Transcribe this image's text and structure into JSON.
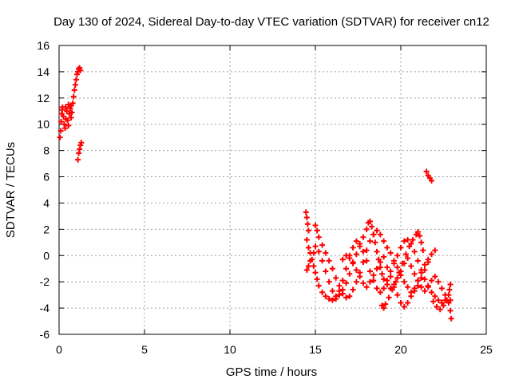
{
  "chart_data": {
    "type": "scatter",
    "title": "Day 130 of 2024, Sidereal Day-to-day VTEC variation (SDTVAR) for receiver cn12",
    "xlabel": "GPS time / hours",
    "ylabel": "SDTVAR / TECUs",
    "xlim": [
      0,
      25
    ],
    "ylim": [
      -6,
      16
    ],
    "xticks": [
      0,
      5,
      10,
      15,
      20,
      25
    ],
    "yticks": [
      -6,
      -4,
      -2,
      0,
      2,
      4,
      6,
      8,
      10,
      12,
      14,
      16
    ],
    "grid": true,
    "marker": "+",
    "series": [
      {
        "color": "#ff0000",
        "points": [
          [
            0.05,
            9.0
          ],
          [
            0.1,
            9.5
          ],
          [
            0.12,
            10.2
          ],
          [
            0.15,
            10.8
          ],
          [
            0.2,
            11.3
          ],
          [
            0.25,
            10.6
          ],
          [
            0.3,
            10.0
          ],
          [
            0.35,
            9.7
          ],
          [
            0.4,
            10.4
          ],
          [
            0.45,
            11.0
          ],
          [
            0.5,
            10.3
          ],
          [
            0.55,
            9.9
          ],
          [
            0.6,
            10.8
          ],
          [
            0.65,
            11.2
          ],
          [
            0.7,
            11.4
          ],
          [
            0.75,
            10.9
          ],
          [
            0.8,
            11.6
          ],
          [
            0.85,
            12.1
          ],
          [
            0.9,
            12.6
          ],
          [
            0.95,
            13.0
          ],
          [
            1.0,
            13.4
          ],
          [
            1.05,
            13.8
          ],
          [
            1.1,
            14.0
          ],
          [
            1.15,
            14.2
          ],
          [
            1.2,
            14.3
          ],
          [
            1.25,
            14.1
          ],
          [
            0.18,
            11.1
          ],
          [
            0.38,
            11.3
          ],
          [
            0.55,
            11.5
          ],
          [
            0.7,
            10.5
          ],
          [
            1.1,
            7.3
          ],
          [
            1.15,
            7.8
          ],
          [
            1.2,
            8.1
          ],
          [
            1.25,
            8.4
          ],
          [
            1.3,
            8.6
          ],
          [
            21.5,
            6.4
          ],
          [
            21.6,
            6.1
          ],
          [
            21.7,
            5.9
          ],
          [
            21.8,
            5.7
          ],
          [
            14.45,
            3.3
          ],
          [
            14.5,
            2.9
          ],
          [
            14.55,
            2.4
          ],
          [
            14.6,
            1.9
          ],
          [
            14.5,
            1.2
          ],
          [
            14.6,
            0.6
          ],
          [
            14.7,
            0.2
          ],
          [
            14.8,
            -0.3
          ],
          [
            14.9,
            -0.8
          ],
          [
            15.0,
            -1.3
          ],
          [
            15.1,
            -1.8
          ],
          [
            15.2,
            -2.3
          ],
          [
            15.4,
            -2.8
          ],
          [
            15.6,
            -3.1
          ],
          [
            15.8,
            -3.3
          ],
          [
            16.0,
            -3.4
          ],
          [
            16.2,
            -3.3
          ],
          [
            16.4,
            -3.0
          ],
          [
            16.6,
            -2.6
          ],
          [
            16.8,
            -2.1
          ],
          [
            17.0,
            -1.4
          ],
          [
            17.2,
            -0.6
          ],
          [
            17.4,
            0.1
          ],
          [
            17.6,
            0.7
          ],
          [
            17.8,
            1.4
          ],
          [
            18.0,
            2.0
          ],
          [
            18.1,
            2.5
          ],
          [
            18.2,
            2.6
          ],
          [
            18.3,
            2.2
          ],
          [
            18.4,
            1.6
          ],
          [
            18.5,
            1.0
          ],
          [
            18.6,
            0.3
          ],
          [
            18.7,
            -0.3
          ],
          [
            18.8,
            -0.9
          ],
          [
            18.9,
            -1.4
          ],
          [
            19.0,
            -1.8
          ],
          [
            19.2,
            -2.2
          ],
          [
            19.4,
            -2.5
          ],
          [
            19.6,
            -2.2
          ],
          [
            19.8,
            -1.7
          ],
          [
            20.0,
            -1.2
          ],
          [
            20.2,
            -0.6
          ],
          [
            20.4,
            -0.2
          ],
          [
            20.6,
            -0.8
          ],
          [
            20.8,
            -1.4
          ],
          [
            21.0,
            -1.9
          ],
          [
            21.2,
            -2.4
          ],
          [
            21.4,
            -2.7
          ],
          [
            21.6,
            -2.3
          ],
          [
            21.8,
            -1.9
          ],
          [
            22.0,
            -1.6
          ],
          [
            22.2,
            -2.0
          ],
          [
            22.4,
            -2.5
          ],
          [
            22.6,
            -3.0
          ],
          [
            22.8,
            -3.6
          ],
          [
            22.9,
            -4.2
          ],
          [
            22.95,
            -4.8
          ],
          [
            15.0,
            2.3
          ],
          [
            15.1,
            1.9
          ],
          [
            15.2,
            1.4
          ],
          [
            15.4,
            0.8
          ],
          [
            15.6,
            0.2
          ],
          [
            15.8,
            -0.4
          ],
          [
            16.0,
            -1.0
          ],
          [
            16.2,
            -1.7
          ],
          [
            16.4,
            -2.3
          ],
          [
            16.6,
            -2.9
          ],
          [
            16.8,
            -3.2
          ],
          [
            17.0,
            -3.1
          ],
          [
            17.2,
            -2.6
          ],
          [
            17.4,
            -2.0
          ],
          [
            17.6,
            -1.3
          ],
          [
            17.8,
            -0.5
          ],
          [
            18.0,
            0.4
          ],
          [
            18.2,
            1.1
          ],
          [
            18.4,
            1.6
          ],
          [
            18.6,
            1.9
          ],
          [
            18.8,
            1.6
          ],
          [
            19.0,
            1.1
          ],
          [
            19.2,
            0.6
          ],
          [
            19.4,
            0.2
          ],
          [
            19.6,
            -0.4
          ],
          [
            19.8,
            -0.9
          ],
          [
            20.0,
            -1.5
          ],
          [
            20.2,
            -2.0
          ],
          [
            20.4,
            -2.4
          ],
          [
            20.6,
            -2.8
          ],
          [
            20.8,
            -2.7
          ],
          [
            21.0,
            -2.3
          ],
          [
            21.2,
            -1.7
          ],
          [
            21.4,
            -1.1
          ],
          [
            21.6,
            -0.5
          ],
          [
            21.8,
            0.1
          ],
          [
            22.0,
            0.4
          ],
          [
            16.6,
            -0.3
          ],
          [
            16.8,
            0.0
          ],
          [
            17.0,
            0.0
          ],
          [
            17.2,
            -0.5
          ],
          [
            17.4,
            -1.1
          ],
          [
            17.6,
            -1.6
          ],
          [
            17.8,
            -2.1
          ],
          [
            18.0,
            -2.4
          ],
          [
            18.2,
            -2.0
          ],
          [
            18.4,
            -1.5
          ],
          [
            18.6,
            -1.0
          ],
          [
            18.8,
            -0.5
          ],
          [
            19.0,
            -0.1
          ],
          [
            19.2,
            -0.9
          ],
          [
            19.4,
            -1.6
          ],
          [
            19.6,
            -2.4
          ],
          [
            19.8,
            -3.0
          ],
          [
            20.0,
            -3.6
          ],
          [
            20.2,
            -3.9
          ],
          [
            20.4,
            -3.6
          ],
          [
            20.6,
            -3.1
          ],
          [
            20.8,
            -2.5
          ],
          [
            21.0,
            -1.9
          ],
          [
            21.2,
            -1.3
          ],
          [
            21.4,
            -0.7
          ],
          [
            21.6,
            -0.3
          ],
          [
            18.9,
            -3.8
          ],
          [
            19.0,
            -4.0
          ],
          [
            19.1,
            -3.7
          ],
          [
            19.3,
            -3.2
          ],
          [
            19.5,
            -2.6
          ],
          [
            19.7,
            -2.0
          ],
          [
            19.9,
            -1.3
          ],
          [
            20.1,
            -0.6
          ],
          [
            20.3,
            0.1
          ],
          [
            20.5,
            0.7
          ],
          [
            20.7,
            1.2
          ],
          [
            20.9,
            1.6
          ],
          [
            21.0,
            1.8
          ],
          [
            21.1,
            1.5
          ],
          [
            21.2,
            1.0
          ],
          [
            21.3,
            0.4
          ],
          [
            14.5,
            -1.1
          ],
          [
            14.6,
            -0.8
          ],
          [
            14.7,
            -0.4
          ],
          [
            14.9,
            0.2
          ],
          [
            15.0,
            0.7
          ],
          [
            15.2,
            0.3
          ],
          [
            15.4,
            -0.4
          ],
          [
            15.6,
            -1.2
          ],
          [
            15.8,
            -2.0
          ],
          [
            16.0,
            -2.7
          ],
          [
            16.2,
            -3.1
          ],
          [
            16.4,
            -2.7
          ],
          [
            16.6,
            -1.9
          ],
          [
            16.8,
            -1.0
          ],
          [
            17.0,
            -0.2
          ],
          [
            17.2,
            0.6
          ],
          [
            17.4,
            1.1
          ],
          [
            17.6,
            0.9
          ],
          [
            17.8,
            0.3
          ],
          [
            18.0,
            -0.4
          ],
          [
            18.2,
            -1.2
          ],
          [
            18.4,
            -1.9
          ],
          [
            18.6,
            -2.5
          ],
          [
            18.8,
            -2.8
          ],
          [
            19.0,
            -2.5
          ],
          [
            19.2,
            -1.9
          ],
          [
            19.4,
            -1.2
          ],
          [
            19.6,
            -0.6
          ],
          [
            19.8,
            0.0
          ],
          [
            20.0,
            0.6
          ],
          [
            20.2,
            1.1
          ],
          [
            20.4,
            1.2
          ],
          [
            20.6,
            0.9
          ],
          [
            20.8,
            0.3
          ],
          [
            21.0,
            -0.4
          ],
          [
            21.2,
            -1.1
          ],
          [
            21.4,
            -1.8
          ],
          [
            21.6,
            -2.4
          ],
          [
            21.8,
            -2.8
          ],
          [
            22.0,
            -3.1
          ],
          [
            22.2,
            -3.4
          ],
          [
            22.4,
            -3.6
          ],
          [
            22.6,
            -3.4
          ],
          [
            22.8,
            -3.0
          ],
          [
            22.9,
            -3.4
          ],
          [
            21.9,
            -3.5
          ],
          [
            22.1,
            -3.9
          ],
          [
            22.3,
            -4.1
          ],
          [
            22.5,
            -3.8
          ],
          [
            22.7,
            -3.4
          ],
          [
            22.85,
            -2.6
          ],
          [
            22.9,
            -2.2
          ]
        ]
      }
    ]
  }
}
